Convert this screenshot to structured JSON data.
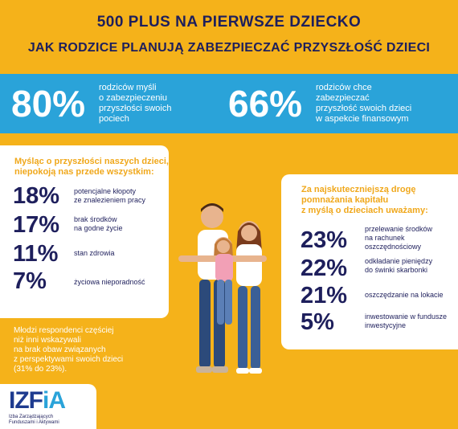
{
  "header": {
    "title": "500 PLUS NA PIERWSZE DZIECKO",
    "subtitle": "JAK RODZICE PLANUJĄ ZABEZPIECZAĆ PRZYSZŁOŚĆ DZIECI"
  },
  "band": {
    "stat1": {
      "value": "80%",
      "line1": "rodziców myśli",
      "line2": "o zabezpieczeniu",
      "line3": "przyszłości swoich",
      "line4": "pociech"
    },
    "stat2": {
      "value": "66%",
      "line1": "rodziców chce",
      "line2": "zabezpieczać",
      "line3": "przyszłość swoich dzieci",
      "line4": "w aspekcie finansowym"
    }
  },
  "left_card": {
    "header_line1": "Myśląc o przyszłości naszych dzieci,",
    "header_line2": "niepokoją nas przede wszystkim:",
    "items": [
      {
        "value": "18%",
        "line1": "potencjalne kłopoty",
        "line2": "ze znalezieniem pracy"
      },
      {
        "value": "17%",
        "line1": "brak środków",
        "line2": "na godne życie"
      },
      {
        "value": "11%",
        "line1": "stan zdrowia",
        "line2": ""
      },
      {
        "value": "7%",
        "line1": "życiowa nieporadność",
        "line2": ""
      }
    ]
  },
  "right_card": {
    "header_line1": "Za najskuteczniejszą drogę",
    "header_line2": "pomnażania kapitału",
    "header_line3": "z myślą o dzieciach uważamy:",
    "items": [
      {
        "value": "23%",
        "line1": "przelewanie środków",
        "line2": "na rachunek",
        "line3": "oszczędnościowy"
      },
      {
        "value": "22%",
        "line1": "odkładanie pieniędzy",
        "line2": "do świnki skarbonki",
        "line3": ""
      },
      {
        "value": "21%",
        "line1": "oszczędzanie na lokacie",
        "line2": "",
        "line3": ""
      },
      {
        "value": "5%",
        "line1": "inwestowanie w fundusze",
        "line2": "inwestycyjne",
        "line3": ""
      }
    ]
  },
  "note": {
    "line1": "Młodzi respondenci częściej",
    "line2": "niż inni wskazywali",
    "line3": "na brak obaw związanych",
    "line4": "z perspektywami swoich dzieci",
    "line5": "(31% do 23%)."
  },
  "logo": {
    "main": "IZF",
    "accent": "iA",
    "sub_line1": "Izba Zarządzających",
    "sub_line2": "Funduszami i Aktywami"
  },
  "colors": {
    "background": "#f5b21a",
    "band": "#2aa3d9",
    "navy": "#1e1f5c",
    "accent_orange": "#f0a81c"
  }
}
